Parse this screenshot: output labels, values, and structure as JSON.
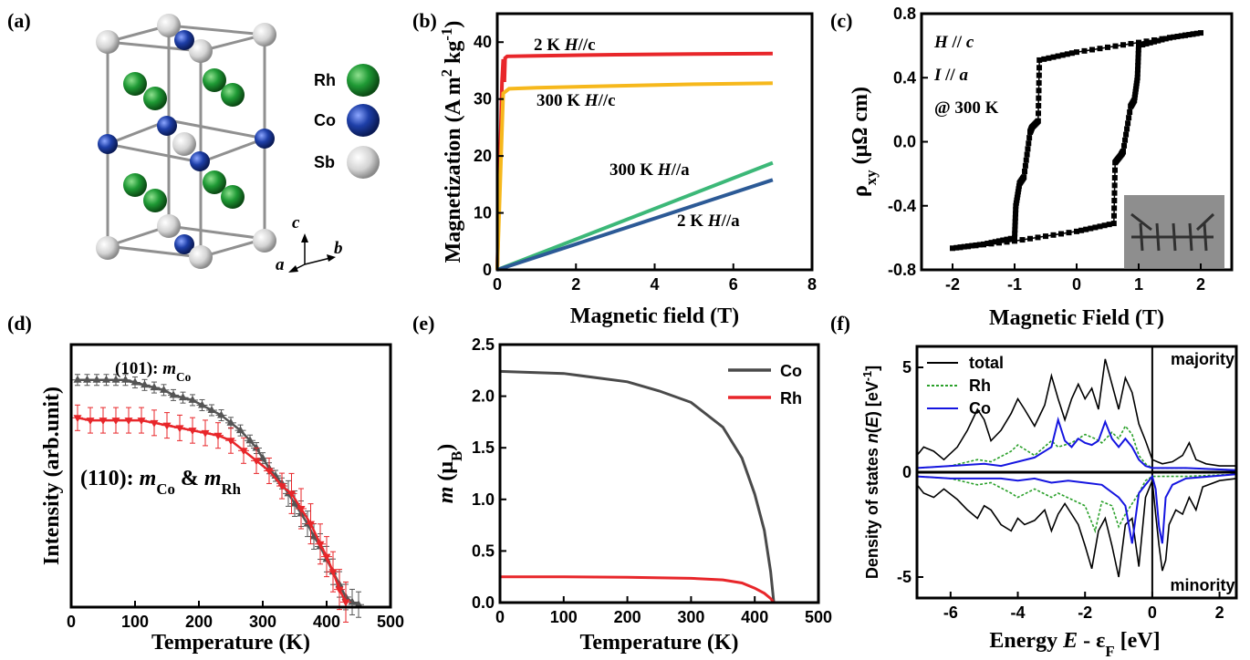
{
  "panels": {
    "a": {
      "label": "(a)",
      "legend": [
        {
          "name": "Rh",
          "color": "#1f8f2f"
        },
        {
          "name": "Co",
          "color": "#1e3fa8"
        },
        {
          "name": "Sb",
          "color": "#d6d6d6"
        }
      ],
      "axes_labels": {
        "c": "c",
        "a": "a",
        "b": "b"
      }
    },
    "b": {
      "label": "(b)"
    },
    "c": {
      "label": "(c)"
    },
    "d": {
      "label": "(d)"
    },
    "e": {
      "label": "(e)"
    },
    "f": {
      "label": "(f)"
    }
  },
  "chart_data": [
    {
      "id": "b",
      "type": "line",
      "xlabel": "Magnetic field (T)",
      "ylabel": "Magnetization (A m2 kg-1)",
      "xlim": [
        0,
        8
      ],
      "ylim": [
        0,
        45
      ],
      "xticks": [
        0,
        2,
        4,
        6,
        8
      ],
      "yticks": [
        0,
        10,
        20,
        30,
        40
      ],
      "series": [
        {
          "name": "2 K H//c",
          "color": "#e8262a",
          "x": [
            0,
            0.12,
            0.15,
            0.18,
            0.2,
            0.25,
            1,
            3,
            5,
            7
          ],
          "y": [
            0,
            33,
            37,
            33,
            37.2,
            37.5,
            37.6,
            37.8,
            37.9,
            38
          ]
        },
        {
          "name": "300 K H//c",
          "color": "#f6b81c",
          "x": [
            0,
            0.15,
            0.3,
            1,
            3,
            5,
            7
          ],
          "y": [
            0,
            31,
            31.8,
            32,
            32.3,
            32.6,
            32.8
          ]
        },
        {
          "name": "300 K H//a",
          "color": "#3cb878",
          "x": [
            0,
            7
          ],
          "y": [
            0,
            18.8
          ]
        },
        {
          "name": "2 K H//a",
          "color": "#2c5a96",
          "x": [
            0,
            7
          ],
          "y": [
            0,
            15.8
          ]
        }
      ],
      "annotations": [
        {
          "prefix": "2 K ",
          "italic": "H",
          "suffix": "//c"
        },
        {
          "prefix": "300 K ",
          "italic": "H",
          "suffix": "//c"
        },
        {
          "prefix": "300 K ",
          "italic": "H",
          "suffix": "//a"
        },
        {
          "prefix": "2 K ",
          "italic": "H",
          "suffix": "//a"
        }
      ]
    },
    {
      "id": "c",
      "type": "line",
      "xlabel": "Magnetic Field (T)",
      "ylabel": "ρxy (μΩ cm)",
      "xlim": [
        -2.5,
        2.5
      ],
      "ylim": [
        -0.8,
        0.8
      ],
      "xticks": [
        -2,
        -1,
        0,
        1,
        2
      ],
      "yticks": [
        -0.8,
        -0.4,
        0.0,
        0.4,
        0.8
      ],
      "branches": [
        {
          "x": [
            -2,
            -1.5,
            -1,
            -0.98,
            -0.92,
            -0.85,
            -0.75,
            -0.72,
            -0.62,
            -0.6,
            0,
            1,
            2
          ],
          "y": [
            -0.665,
            -0.64,
            -0.6,
            -0.4,
            -0.26,
            -0.22,
            0.06,
            0.09,
            0.13,
            0.51,
            0.56,
            0.62,
            0.68
          ]
        },
        {
          "x": [
            2,
            1.5,
            1,
            0.98,
            0.93,
            0.87,
            0.75,
            0.72,
            0.62,
            0.6,
            0,
            -1,
            -2
          ],
          "y": [
            0.68,
            0.65,
            0.6,
            0.4,
            0.26,
            0.22,
            -0.06,
            -0.08,
            -0.13,
            -0.51,
            -0.56,
            -0.62,
            -0.665
          ]
        }
      ],
      "annotations": [
        "H // c",
        "I // a",
        "@ 300 K"
      ]
    },
    {
      "id": "d",
      "type": "scatter",
      "xlabel": "Temperature (K)",
      "ylabel": "Intensity (arb.unit)",
      "xlim": [
        0,
        500
      ],
      "ylim": [
        0,
        1.04
      ],
      "xticks": [
        0,
        100,
        200,
        300,
        400,
        500
      ],
      "series": [
        {
          "name": "(101): mCo",
          "color": "#555555",
          "marker": "triangle-up",
          "x": [
            10,
            25,
            40,
            55,
            70,
            85,
            100,
            115,
            130,
            145,
            160,
            175,
            190,
            205,
            220,
            235,
            250,
            265,
            280,
            290,
            300,
            310,
            320,
            330,
            340,
            350,
            360,
            370,
            380,
            390,
            400,
            410,
            420,
            430,
            440,
            450
          ],
          "y": [
            0.9,
            0.9,
            0.9,
            0.9,
            0.9,
            0.9,
            0.89,
            0.88,
            0.87,
            0.86,
            0.84,
            0.83,
            0.82,
            0.8,
            0.78,
            0.76,
            0.73,
            0.7,
            0.66,
            0.63,
            0.59,
            0.55,
            0.52,
            0.49,
            0.45,
            0.41,
            0.37,
            0.33,
            0.28,
            0.24,
            0.19,
            0.14,
            0.09,
            0.04,
            0.02,
            0.01
          ]
        },
        {
          "name": "(110): mCo & mRh",
          "color": "#e8262a",
          "marker": "triangle-down",
          "x": [
            10,
            30,
            50,
            70,
            90,
            110,
            130,
            150,
            170,
            190,
            210,
            230,
            250,
            270,
            290,
            310,
            330,
            345,
            360,
            375,
            390,
            400,
            410,
            420,
            430
          ],
          "y": [
            0.75,
            0.74,
            0.74,
            0.74,
            0.74,
            0.74,
            0.73,
            0.72,
            0.71,
            0.7,
            0.69,
            0.68,
            0.66,
            0.62,
            0.58,
            0.54,
            0.48,
            0.45,
            0.39,
            0.33,
            0.25,
            0.2,
            0.14,
            0.07,
            0.02
          ]
        }
      ],
      "annotations": [
        {
          "prefix": "(101): ",
          "italic": "m",
          "sub": "Co"
        },
        {
          "prefix": "(110): ",
          "italic": "m",
          "sub": "Co",
          "mid": " & ",
          "italic2": "m",
          "sub2": "Rh"
        }
      ]
    },
    {
      "id": "e",
      "type": "line",
      "xlabel": "Temperature (K)",
      "ylabel": "m (μB)",
      "xlim": [
        0,
        500
      ],
      "ylim": [
        0,
        2.5
      ],
      "xticks": [
        0,
        100,
        200,
        300,
        400,
        500
      ],
      "yticks": [
        0.0,
        0.5,
        1.0,
        1.5,
        2.0,
        2.5
      ],
      "series": [
        {
          "name": "Co",
          "color": "#4a4a4a",
          "x": [
            0,
            100,
            200,
            250,
            300,
            350,
            380,
            400,
            415,
            425,
            430
          ],
          "y": [
            2.24,
            2.22,
            2.14,
            2.05,
            1.94,
            1.7,
            1.4,
            1.05,
            0.7,
            0.3,
            0
          ]
        },
        {
          "name": "Rh",
          "color": "#e8262a",
          "x": [
            0,
            100,
            200,
            300,
            350,
            380,
            400,
            415,
            425,
            430
          ],
          "y": [
            0.25,
            0.25,
            0.245,
            0.235,
            0.22,
            0.19,
            0.14,
            0.09,
            0.04,
            0
          ]
        }
      ]
    },
    {
      "id": "f",
      "type": "line",
      "xlabel": "Energy  E - εF [eV]",
      "ylabel": "Density of states  n(E) [eV-1]",
      "xlim": [
        -7,
        2.5
      ],
      "ylim": [
        -6,
        6
      ],
      "xticks": [
        -6,
        -4,
        -2,
        0,
        2
      ],
      "yticks": [
        -5,
        0,
        5
      ],
      "labels": {
        "majority": "majority",
        "minority": "minority"
      },
      "series": [
        {
          "name": "total",
          "color": "#000000",
          "up_x": [
            -7,
            -6.8,
            -6.5,
            -6.2,
            -5.8,
            -5.5,
            -5.2,
            -5,
            -4.8,
            -4.5,
            -4.2,
            -4,
            -3.8,
            -3.5,
            -3.2,
            -3,
            -2.8,
            -2.6,
            -2.4,
            -2.2,
            -2,
            -1.8,
            -1.6,
            -1.4,
            -1.2,
            -1,
            -0.8,
            -0.6,
            -0.4,
            -0.2,
            0,
            0.3,
            0.6,
            0.9,
            1.1,
            1.3,
            1.6,
            2,
            2.5
          ],
          "up_y": [
            0.8,
            1.2,
            1,
            0.6,
            1.2,
            2,
            3,
            2.5,
            1.5,
            2,
            2.8,
            3.5,
            3,
            2.2,
            3.2,
            4.6,
            3.5,
            2.5,
            3.5,
            4.2,
            3.5,
            4,
            3,
            5.4,
            4.2,
            3,
            4.5,
            3.8,
            2.3,
            1.5,
            0.6,
            0.4,
            0.5,
            0.8,
            1.4,
            0.6,
            0.4,
            0.3,
            0.3
          ],
          "dn_x": [
            -7,
            -6.8,
            -6.5,
            -6.2,
            -5.8,
            -5.5,
            -5.2,
            -5,
            -4.8,
            -4.5,
            -4.2,
            -4,
            -3.8,
            -3.5,
            -3.2,
            -3,
            -2.8,
            -2.6,
            -2.4,
            -2.2,
            -2,
            -1.8,
            -1.6,
            -1.4,
            -1.2,
            -1,
            -0.8,
            -0.6,
            -0.4,
            -0.2,
            0,
            0.1,
            0.2,
            0.3,
            0.4,
            0.5,
            0.7,
            0.9,
            1.1,
            1.3,
            1.5,
            2,
            2.5
          ],
          "dn_y": [
            -0.6,
            -1,
            -1.2,
            -0.8,
            -1.3,
            -1.8,
            -2.2,
            -1.6,
            -1.8,
            -2.5,
            -2.8,
            -2.2,
            -2.5,
            -2.3,
            -1.8,
            -2.8,
            -2,
            -1.5,
            -2,
            -2.5,
            -3.5,
            -4.6,
            -2.8,
            -2.2,
            -3.5,
            -5,
            -2.5,
            -2.2,
            -4.5,
            -1.2,
            -0.4,
            -2,
            -3.5,
            -4.7,
            -4.2,
            -2.5,
            -1.8,
            -2,
            -1.2,
            -1.8,
            -0.7,
            -0.4,
            -0.3
          ]
        },
        {
          "name": "Rh",
          "color": "#2aa02a",
          "dashed": true,
          "up_x": [
            -7,
            -6,
            -5.2,
            -4.8,
            -4.2,
            -4,
            -3.5,
            -3,
            -2.8,
            -2.4,
            -2,
            -1.7,
            -1.5,
            -1.2,
            -1,
            -0.8,
            -0.6,
            -0.4,
            -0.2,
            0,
            1,
            2.5
          ],
          "up_y": [
            0.2,
            0.3,
            0.6,
            0.5,
            1,
            1.3,
            0.8,
            1.5,
            1.2,
            1.4,
            1.8,
            1.6,
            1.4,
            1.9,
            1.6,
            2.2,
            1.8,
            0.8,
            0.4,
            0.2,
            0.2,
            0.1
          ],
          "dn_x": [
            -7,
            -6,
            -5.2,
            -4.8,
            -4.2,
            -4,
            -3.5,
            -3,
            -2.8,
            -2.4,
            -2,
            -1.7,
            -1.5,
            -1.2,
            -1,
            -0.8,
            -0.6,
            -0.4,
            -0.2,
            0,
            1,
            2.5
          ],
          "dn_y": [
            -0.2,
            -0.3,
            -0.6,
            -0.5,
            -1,
            -1.2,
            -0.8,
            -1.2,
            -1,
            -1.3,
            -1.6,
            -2.8,
            -1.4,
            -1.6,
            -2.6,
            -2,
            -1.5,
            -1,
            -0.4,
            -0.2,
            -0.2,
            -0.1
          ]
        },
        {
          "name": "Co",
          "color": "#1515e0",
          "up_x": [
            -7,
            -6,
            -5,
            -4.5,
            -4,
            -3.5,
            -3,
            -2.8,
            -2.6,
            -2.4,
            -2.2,
            -2,
            -1.8,
            -1.6,
            -1.4,
            -1.2,
            -1,
            -0.8,
            -0.6,
            -0.4,
            -0.2,
            0,
            1,
            2.5
          ],
          "up_y": [
            0.2,
            0.3,
            0.4,
            0.3,
            0.5,
            0.7,
            1.2,
            2.5,
            1.5,
            1.2,
            1.6,
            1.4,
            1.3,
            1.5,
            2.4,
            1.6,
            1.2,
            1.6,
            1.2,
            0.6,
            0.3,
            0.2,
            0.2,
            0.1
          ],
          "dn_x": [
            -7,
            -6,
            -5,
            -4.5,
            -4,
            -3.5,
            -3,
            -2.5,
            -2,
            -1.5,
            -1,
            -0.8,
            -0.6,
            -0.4,
            -0.2,
            0,
            0.1,
            0.2,
            0.3,
            0.4,
            0.6,
            1,
            2.5
          ],
          "dn_y": [
            -0.2,
            -0.3,
            -0.3,
            -0.3,
            -0.4,
            -0.3,
            -0.5,
            -0.4,
            -0.5,
            -0.6,
            -1.2,
            -1.6,
            -3.4,
            -1,
            -0.6,
            -0.2,
            -0.8,
            -2.6,
            -3.4,
            -1.2,
            -0.6,
            -0.3,
            -0.1
          ]
        }
      ]
    }
  ]
}
